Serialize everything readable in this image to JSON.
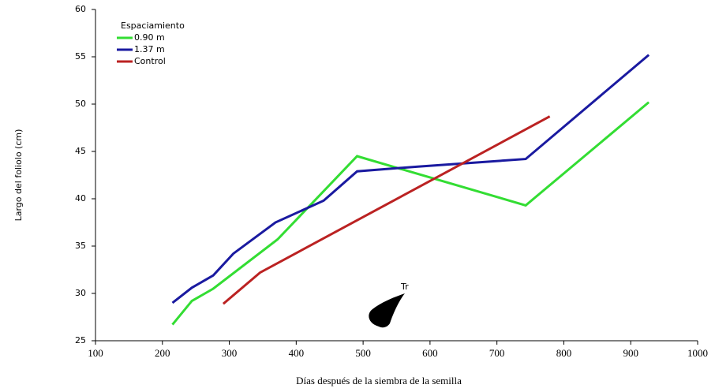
{
  "chart_data": {
    "type": "line",
    "xlabel": "Días después de la siembra de la semilla",
    "ylabel": "Largo del foliolo (cm)",
    "legend_title": "Espaciamiento",
    "legend": "top-left",
    "annotation": "Tr",
    "xlim": [
      100,
      1000
    ],
    "xticks": [
      100,
      200,
      300,
      400,
      500,
      600,
      700,
      800,
      900,
      1000
    ],
    "ylim": [
      25,
      60
    ],
    "yticks": [
      25,
      30,
      35,
      40,
      45,
      50,
      55,
      60
    ],
    "series": [
      {
        "name": "0.90 m",
        "color": "#33dd33",
        "x": [
          215,
          244,
          276,
          372,
          491,
          743,
          927
        ],
        "values": [
          26.7,
          29.2,
          30.5,
          35.7,
          44.5,
          39.3,
          50.2
        ]
      },
      {
        "name": "1.37 m",
        "color": "#1a1aa0",
        "x": [
          215,
          244,
          276,
          306,
          369,
          441,
          491,
          582,
          743,
          927
        ],
        "values": [
          29,
          30.6,
          31.9,
          34.2,
          37.5,
          39.8,
          42.9,
          43.4,
          44.2,
          55.2
        ]
      },
      {
        "name": "Control",
        "color": "#bb2222",
        "x": [
          291,
          346,
          779
        ],
        "values": [
          28.9,
          32.2,
          48.7
        ]
      }
    ]
  }
}
